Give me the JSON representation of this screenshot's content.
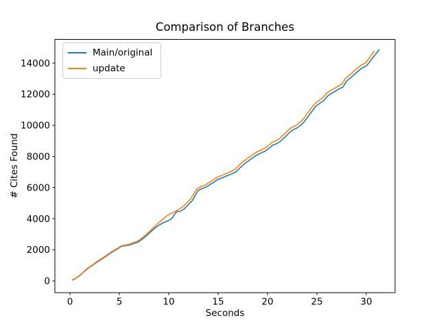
{
  "chart_data": {
    "type": "line",
    "title": "Comparison of Branches",
    "xlabel": "Seconds",
    "ylabel": "# Cites Found",
    "xlim": [
      -1.53,
      32.92
    ],
    "ylim": [
      -760,
      15520
    ],
    "xticks": [
      0,
      5,
      10,
      15,
      20,
      25,
      30
    ],
    "yticks": [
      0,
      2000,
      4000,
      6000,
      8000,
      10000,
      12000,
      14000
    ],
    "grid": false,
    "legend_position": "upper-left",
    "axis_color": "#000000",
    "series": [
      {
        "name": "Main/original",
        "color": "#1f77b4",
        "points": [
          [
            0.25,
            60
          ],
          [
            0.55,
            150
          ],
          [
            0.85,
            280
          ],
          [
            1.1,
            400
          ],
          [
            1.35,
            560
          ],
          [
            1.6,
            700
          ],
          [
            1.85,
            820
          ],
          [
            2.1,
            920
          ],
          [
            2.4,
            1060
          ],
          [
            2.7,
            1200
          ],
          [
            3.0,
            1310
          ],
          [
            3.3,
            1440
          ],
          [
            3.6,
            1560
          ],
          [
            3.9,
            1700
          ],
          [
            4.2,
            1830
          ],
          [
            4.5,
            1950
          ],
          [
            4.8,
            2050
          ],
          [
            5.05,
            2160
          ],
          [
            5.2,
            2230
          ],
          [
            5.6,
            2260
          ],
          [
            6.0,
            2310
          ],
          [
            6.4,
            2400
          ],
          [
            6.8,
            2470
          ],
          [
            7.1,
            2590
          ],
          [
            7.5,
            2780
          ],
          [
            7.9,
            3000
          ],
          [
            8.3,
            3230
          ],
          [
            8.7,
            3450
          ],
          [
            9.1,
            3620
          ],
          [
            9.5,
            3760
          ],
          [
            9.9,
            3870
          ],
          [
            10.3,
            4000
          ],
          [
            10.55,
            4250
          ],
          [
            10.75,
            4430
          ],
          [
            11.2,
            4490
          ],
          [
            11.6,
            4650
          ],
          [
            12.0,
            4920
          ],
          [
            12.4,
            5180
          ],
          [
            12.75,
            5580
          ],
          [
            13.0,
            5840
          ],
          [
            13.4,
            5940
          ],
          [
            13.8,
            6040
          ],
          [
            14.2,
            6200
          ],
          [
            14.6,
            6360
          ],
          [
            14.95,
            6520
          ],
          [
            15.35,
            6610
          ],
          [
            15.75,
            6720
          ],
          [
            16.15,
            6830
          ],
          [
            16.55,
            6920
          ],
          [
            16.95,
            7100
          ],
          [
            17.35,
            7350
          ],
          [
            17.75,
            7560
          ],
          [
            18.15,
            7760
          ],
          [
            18.55,
            7940
          ],
          [
            18.95,
            8100
          ],
          [
            19.35,
            8230
          ],
          [
            19.75,
            8340
          ],
          [
            20.15,
            8520
          ],
          [
            20.55,
            8740
          ],
          [
            20.95,
            8830
          ],
          [
            21.35,
            9000
          ],
          [
            21.75,
            9240
          ],
          [
            22.15,
            9500
          ],
          [
            22.55,
            9700
          ],
          [
            22.95,
            9820
          ],
          [
            23.35,
            10000
          ],
          [
            23.75,
            10250
          ],
          [
            24.15,
            10600
          ],
          [
            24.55,
            10950
          ],
          [
            24.9,
            11230
          ],
          [
            25.3,
            11430
          ],
          [
            25.7,
            11600
          ],
          [
            26.1,
            11900
          ],
          [
            26.5,
            12060
          ],
          [
            26.9,
            12210
          ],
          [
            27.3,
            12360
          ],
          [
            27.65,
            12470
          ],
          [
            28.0,
            12850
          ],
          [
            28.4,
            13050
          ],
          [
            28.8,
            13280
          ],
          [
            29.2,
            13500
          ],
          [
            29.6,
            13700
          ],
          [
            30.0,
            13820
          ],
          [
            30.3,
            14050
          ],
          [
            30.6,
            14310
          ],
          [
            31.0,
            14620
          ],
          [
            31.3,
            14860
          ]
        ]
      },
      {
        "name": "update",
        "color": "#ff7f0e",
        "points": [
          [
            0.25,
            80
          ],
          [
            0.55,
            170
          ],
          [
            0.85,
            300
          ],
          [
            1.1,
            420
          ],
          [
            1.35,
            580
          ],
          [
            1.6,
            730
          ],
          [
            1.85,
            850
          ],
          [
            2.1,
            950
          ],
          [
            2.4,
            1090
          ],
          [
            2.7,
            1240
          ],
          [
            3.0,
            1350
          ],
          [
            3.3,
            1480
          ],
          [
            3.6,
            1600
          ],
          [
            3.9,
            1740
          ],
          [
            4.2,
            1870
          ],
          [
            4.5,
            1990
          ],
          [
            4.8,
            2090
          ],
          [
            5.05,
            2200
          ],
          [
            5.2,
            2260
          ],
          [
            5.6,
            2300
          ],
          [
            6.0,
            2360
          ],
          [
            6.4,
            2460
          ],
          [
            6.8,
            2540
          ],
          [
            7.1,
            2670
          ],
          [
            7.5,
            2870
          ],
          [
            7.9,
            3100
          ],
          [
            8.3,
            3340
          ],
          [
            8.7,
            3580
          ],
          [
            9.1,
            3800
          ],
          [
            9.5,
            4020
          ],
          [
            9.9,
            4230
          ],
          [
            10.2,
            4330
          ],
          [
            10.6,
            4450
          ],
          [
            11.0,
            4600
          ],
          [
            11.4,
            4760
          ],
          [
            11.8,
            5000
          ],
          [
            12.2,
            5260
          ],
          [
            12.6,
            5660
          ],
          [
            12.85,
            5930
          ],
          [
            13.3,
            6070
          ],
          [
            13.7,
            6170
          ],
          [
            14.1,
            6330
          ],
          [
            14.5,
            6490
          ],
          [
            14.85,
            6660
          ],
          [
            15.25,
            6750
          ],
          [
            15.65,
            6860
          ],
          [
            16.05,
            6970
          ],
          [
            16.45,
            7070
          ],
          [
            16.85,
            7260
          ],
          [
            17.25,
            7510
          ],
          [
            17.65,
            7720
          ],
          [
            18.05,
            7920
          ],
          [
            18.45,
            8100
          ],
          [
            18.85,
            8260
          ],
          [
            19.25,
            8390
          ],
          [
            19.65,
            8500
          ],
          [
            20.05,
            8690
          ],
          [
            20.45,
            8910
          ],
          [
            20.85,
            9000
          ],
          [
            21.25,
            9170
          ],
          [
            21.65,
            9410
          ],
          [
            22.05,
            9670
          ],
          [
            22.45,
            9870
          ],
          [
            22.85,
            9990
          ],
          [
            23.25,
            10170
          ],
          [
            23.65,
            10430
          ],
          [
            24.05,
            10780
          ],
          [
            24.45,
            11130
          ],
          [
            24.8,
            11400
          ],
          [
            25.2,
            11600
          ],
          [
            25.6,
            11780
          ],
          [
            26.0,
            12080
          ],
          [
            26.4,
            12240
          ],
          [
            26.8,
            12390
          ],
          [
            27.2,
            12540
          ],
          [
            27.55,
            12660
          ],
          [
            27.9,
            13030
          ],
          [
            28.3,
            13230
          ],
          [
            28.7,
            13460
          ],
          [
            29.1,
            13680
          ],
          [
            29.5,
            13880
          ],
          [
            29.9,
            14000
          ],
          [
            30.2,
            14230
          ],
          [
            30.45,
            14470
          ],
          [
            30.8,
            14760
          ]
        ]
      }
    ]
  }
}
